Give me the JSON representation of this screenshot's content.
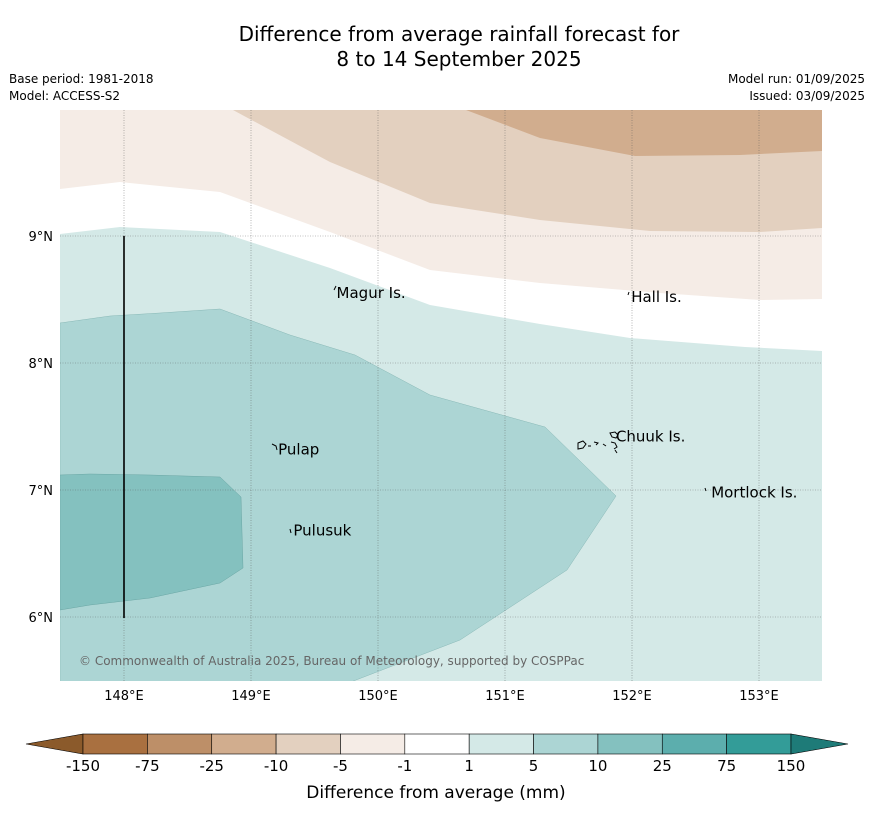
{
  "header": {
    "title_line1": "Difference from average rainfall forecast for",
    "title_line2": "8 to 14 September 2025",
    "base_period": "Base period: 1981-2018",
    "model": "Model: ACCESS-S2",
    "model_run": "Model run: 01/09/2025",
    "issued": "Issued: 03/09/2025"
  },
  "map": {
    "lon_ticks": [
      "148°E",
      "149°E",
      "150°E",
      "151°E",
      "152°E",
      "153°E"
    ],
    "lat_ticks": [
      "9°N",
      "8°N",
      "7°N",
      "6°N"
    ],
    "places": [
      {
        "name": "Magur Is.",
        "lon": 149.65,
        "lat": 8.55
      },
      {
        "name": "Hall Is.",
        "lon": 151.97,
        "lat": 8.52
      },
      {
        "name": "Pulap",
        "lon": 149.19,
        "lat": 7.32
      },
      {
        "name": "Chuuk Is.",
        "lon": 151.85,
        "lat": 7.42
      },
      {
        "name": "Mortlock Is.",
        "lon": 152.6,
        "lat": 6.98
      },
      {
        "name": "Pulusuk",
        "lon": 149.31,
        "lat": 6.68
      }
    ],
    "copyright": "© Commonwealth of Australia 2025, Bureau of Meteorology, supported by COSPPac"
  },
  "colorbar": {
    "label": "Difference from average (mm)",
    "boundaries": [
      "-150",
      "-75",
      "-25",
      "-10",
      "-5",
      "-1",
      "1",
      "5",
      "10",
      "25",
      "75",
      "150"
    ],
    "colors": [
      "#a97040",
      "#bd8f68",
      "#d1ad8e",
      "#e3d0bf",
      "#f5ece6",
      "#ffffff",
      "#d4e9e7",
      "#acd5d4",
      "#84c1bf",
      "#5caead",
      "#339c98"
    ],
    "under_color": "#8b5a2b",
    "over_color": "#1e7b78"
  }
}
